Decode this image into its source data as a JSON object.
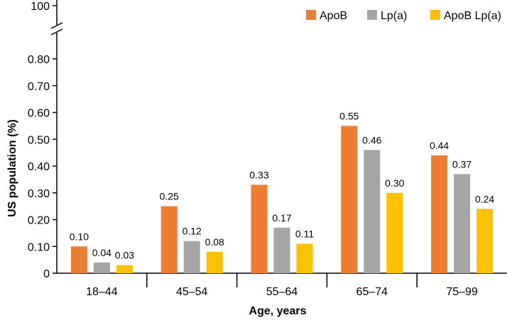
{
  "chart_data": {
    "type": "bar",
    "title": "",
    "xlabel": "Age, years",
    "ylabel": "US population (%)",
    "ylim": [
      0,
      0.8
    ],
    "y_ticks": [
      "0",
      "0.10",
      "0.20",
      "0.30",
      "0.40",
      "0.50",
      "0.60",
      "0.70",
      "0.80"
    ],
    "y_break_tick": "100",
    "categories": [
      "18–44",
      "45–54",
      "55–64",
      "65–74",
      "75–99"
    ],
    "series": [
      {
        "name": "ApoB",
        "color": "#ED7D31",
        "values": [
          0.1,
          0.25,
          0.33,
          0.55,
          0.44
        ],
        "labels": [
          "0.10",
          "0.25",
          "0.33",
          "0.55",
          "0.44"
        ]
      },
      {
        "name": "Lp(a)",
        "color": "#A5A5A5",
        "values": [
          0.04,
          0.12,
          0.17,
          0.46,
          0.37
        ],
        "labels": [
          "0.04",
          "0.12",
          "0.17",
          "0.46",
          "0.37"
        ]
      },
      {
        "name": "ApoB Lp(a)",
        "color": "#FFC000",
        "values": [
          0.03,
          0.08,
          0.11,
          0.3,
          0.24
        ],
        "labels": [
          "0.03",
          "0.08",
          "0.11",
          "0.30",
          "0.24"
        ]
      }
    ],
    "legend_position": "top-right",
    "grid": false
  }
}
